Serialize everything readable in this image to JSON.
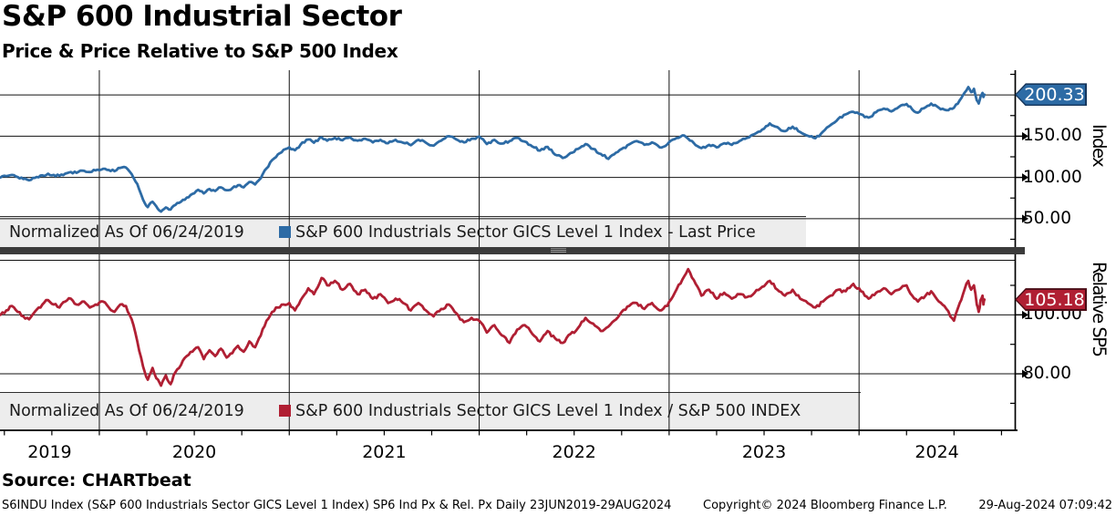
{
  "header": {
    "title": "S&P 600 Industrial Sector",
    "subtitle": "Price & Price Relative to S&P 500 Index"
  },
  "panels": {
    "price": {
      "axis_title": "Index",
      "last_price_label": "200.33",
      "legend_normalized": "Normalized As Of 06/24/2019",
      "legend_series": "S&P 600 Industrials Sector GICS Level 1 Index - Last Price"
    },
    "relative": {
      "axis_title": "Relative SP5",
      "last_price_label": "105.18",
      "legend_normalized": "Normalized As Of 06/24/2019",
      "legend_series": "S&P 600 Industrials Sector GICS Level 1 Index / S&P 500 INDEX"
    }
  },
  "footer": {
    "source": "Source: CHARTbeat",
    "info": "S6INDU Index (S&P 600 Industrials Sector GICS Level 1 Index) SP6 Ind Px & Rel. Px  Daily 23JUN2019-29AUG2024",
    "copyright": "Copyright© 2024 Bloomberg Finance L.P.",
    "datetime": "29-Aug-2024 07:09:42"
  },
  "chart_data": {
    "type": "line",
    "title": "S&P 600 Industrial Sector - Price & Price Relative to S&P 500 Index",
    "x_label_years": [
      "2019",
      "2020",
      "2021",
      "2022",
      "2023",
      "2024"
    ],
    "x_range": [
      2019.477,
      2024.82
    ],
    "year_gridlines": [
      2020,
      2021,
      2022,
      2023,
      2024
    ],
    "x_years": [
      2019.48,
      2019.51,
      2019.54,
      2019.57,
      2019.6,
      2019.63,
      2019.66,
      2019.7,
      2019.73,
      2019.76,
      2019.79,
      2019.82,
      2019.85,
      2019.88,
      2019.92,
      2019.95,
      2019.98,
      2020.02,
      2020.05,
      2020.08,
      2020.11,
      2020.14,
      2020.17,
      2020.2,
      2020.23,
      2020.255,
      2020.28,
      2020.3,
      2020.325,
      2020.35,
      2020.375,
      2020.4,
      2020.43,
      2020.46,
      2020.49,
      2020.52,
      2020.55,
      2020.58,
      2020.61,
      2020.64,
      2020.67,
      2020.7,
      2020.73,
      2020.76,
      2020.79,
      2020.82,
      2020.85,
      2020.88,
      2020.91,
      2020.94,
      2020.97,
      2021.0,
      2021.03,
      2021.06,
      2021.1,
      2021.13,
      2021.17,
      2021.2,
      2021.24,
      2021.28,
      2021.32,
      2021.36,
      2021.4,
      2021.44,
      2021.48,
      2021.52,
      2021.56,
      2021.6,
      2021.64,
      2021.68,
      2021.72,
      2021.76,
      2021.8,
      2021.84,
      2021.88,
      2021.92,
      2021.96,
      2022.0,
      2022.04,
      2022.08,
      2022.12,
      2022.16,
      2022.2,
      2022.24,
      2022.28,
      2022.32,
      2022.36,
      2022.4,
      2022.44,
      2022.48,
      2022.52,
      2022.56,
      2022.6,
      2022.64,
      2022.68,
      2022.71,
      2022.75,
      2022.79,
      2022.83,
      2022.87,
      2022.91,
      2022.95,
      2022.99,
      2023.03,
      2023.07,
      2023.1,
      2023.14,
      2023.17,
      2023.21,
      2023.25,
      2023.29,
      2023.33,
      2023.37,
      2023.41,
      2023.45,
      2023.49,
      2023.53,
      2023.57,
      2023.61,
      2023.65,
      2023.69,
      2023.73,
      2023.77,
      2023.81,
      2023.85,
      2023.89,
      2023.93,
      2023.97,
      2024.01,
      2024.05,
      2024.09,
      2024.13,
      2024.17,
      2024.21,
      2024.25,
      2024.28,
      2024.31,
      2024.35,
      2024.38,
      2024.42,
      2024.46,
      2024.5,
      2024.53,
      2024.555,
      2024.575,
      2024.59,
      2024.605,
      2024.62,
      2024.63,
      2024.64,
      2024.65,
      2024.655,
      2024.66
    ],
    "series": [
      {
        "name": "S&P 600 Industrials Sector GICS Level 1 Index - Last Price",
        "panel": "price",
        "normalized_as_of": "06/24/2019",
        "color": "#2d6ba5",
        "badge_border": "#16365c",
        "last_value": 200.33,
        "ylim": [
          15,
          230
        ],
        "ygrid": [
          50,
          100,
          150,
          200
        ],
        "yticks": [
          {
            "v": 150,
            "label": "150.00"
          },
          {
            "v": 100,
            "label": "100.00"
          },
          {
            "v": 50,
            "label": "50.00"
          }
        ],
        "yminor_step": 25,
        "jitter": 1.6,
        "values": [
          100,
          101.5,
          103,
          100.5,
          98,
          96.5,
          99.5,
          102.5,
          104.5,
          103,
          102,
          104.5,
          106.5,
          105.5,
          108,
          106.5,
          108.5,
          110.5,
          109,
          107.5,
          111.5,
          112,
          104,
          92,
          73,
          64,
          70.5,
          65,
          58.5,
          63.5,
          61,
          66.5,
          70.5,
          75.5,
          80,
          85,
          80.5,
          86,
          83.5,
          88,
          84.5,
          87,
          90.5,
          88,
          94.5,
          91.5,
          99,
          111,
          121,
          128,
          133.5,
          136.5,
          133,
          140,
          146,
          142,
          148.5,
          144.5,
          148,
          145,
          148.5,
          144.5,
          147,
          142.5,
          145.5,
          141.5,
          145.5,
          142,
          139,
          145.5,
          142,
          138.5,
          144.5,
          150,
          146,
          142.5,
          147,
          149.5,
          140.5,
          145.5,
          141,
          144,
          148,
          143.5,
          137.5,
          132.5,
          137,
          127.5,
          123.5,
          129.5,
          134.5,
          140.5,
          134.5,
          128.5,
          122.5,
          128,
          134.5,
          140,
          144,
          139.5,
          142.5,
          136.5,
          140,
          146.5,
          151,
          147,
          139,
          135.5,
          139.5,
          136.5,
          141.5,
          139.5,
          144,
          148,
          152.5,
          158,
          165.5,
          161,
          156,
          161.5,
          155,
          150.5,
          147.5,
          155.5,
          163.5,
          171,
          176.5,
          179.5,
          176.5,
          172.5,
          179,
          183.5,
          180,
          185.5,
          189,
          182.5,
          178.5,
          185,
          189.5,
          184.5,
          181.5,
          184.5,
          193.5,
          202.5,
          209.5,
          203.5,
          207.5,
          193.5,
          189.5,
          198,
          202.5,
          197.5,
          200.33
        ]
      },
      {
        "name": "S&P 600 Industrials Sector GICS Level 1 Index / S&P 500 INDEX",
        "panel": "relative",
        "normalized_as_of": "06/24/2019",
        "color": "#b01f33",
        "badge_border": "#4a0c16",
        "last_value": 105.18,
        "ylim": [
          61,
          118.5
        ],
        "ygrid": [
          80,
          100
        ],
        "yticks": [
          {
            "v": 100,
            "label": "100.00"
          },
          {
            "v": 80,
            "label": "80.00"
          }
        ],
        "yminor_step": 10,
        "jitter": 0.6,
        "values": [
          100,
          101.5,
          103,
          101,
          99.5,
          98.5,
          101,
          103.5,
          105,
          103.5,
          102.5,
          104.5,
          105.5,
          103.5,
          104.5,
          102.5,
          103.5,
          104.5,
          102.5,
          101,
          103.5,
          103,
          98.5,
          91,
          82.5,
          78,
          82,
          78.5,
          76,
          79.5,
          76.5,
          80.5,
          83,
          86,
          87.5,
          89,
          85,
          88,
          86,
          88.5,
          85.5,
          87,
          89.5,
          87.5,
          91,
          89,
          93,
          98,
          101,
          102.5,
          103.5,
          104,
          101.5,
          105,
          109,
          107,
          112.5,
          110,
          111.5,
          108.5,
          110.5,
          107,
          108.5,
          105.5,
          107,
          104,
          105.5,
          104,
          101.5,
          104,
          101.5,
          99.5,
          102,
          103.5,
          100.5,
          97.5,
          99,
          98,
          94,
          96.5,
          93,
          90.5,
          95,
          96.5,
          93.5,
          91,
          94.5,
          92,
          90.5,
          93.5,
          95.5,
          99,
          97,
          94.5,
          96,
          98,
          101,
          103,
          104,
          102,
          104,
          101.5,
          103,
          107.5,
          112,
          115.5,
          110.5,
          106.5,
          108.5,
          105.5,
          107.5,
          105.5,
          107,
          106,
          107.5,
          109.5,
          111.5,
          108.5,
          106.5,
          108.5,
          105.5,
          104,
          102.5,
          104.5,
          106.5,
          108.5,
          108,
          110.5,
          108,
          105.5,
          107.5,
          109,
          107,
          108.5,
          110,
          106.5,
          104.5,
          106.5,
          108,
          104.5,
          102,
          98,
          104,
          108.5,
          111.5,
          108.5,
          110,
          103.5,
          101,
          105,
          106.5,
          103.5,
          105.18
        ]
      }
    ]
  }
}
